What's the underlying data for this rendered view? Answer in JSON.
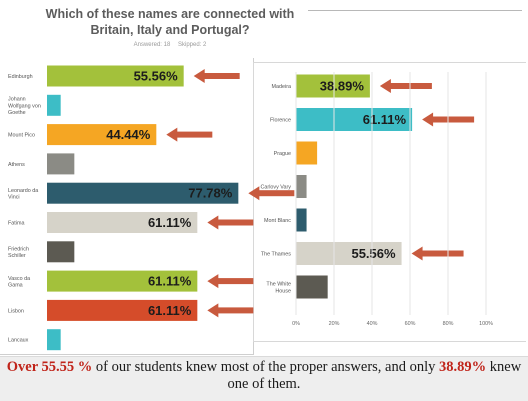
{
  "title_line1": "Which of these names are connected with",
  "title_line2": "Britain, Italy and Portugal?",
  "answered": "Answered: 18",
  "skipped": "Skipped: 2",
  "footer": {
    "part1": "Over  55.55 %",
    "part2": " of our students knew most of the proper answers, and only ",
    "part3": "38.89%",
    "part4": " knew one of them."
  },
  "colors": {
    "green": "#a3c13b",
    "teal": "#3dbdc6",
    "orange": "#f5a623",
    "gray": "#8b8b85",
    "darkteal": "#2d5c6d",
    "lightbeige": "#d6d3c9",
    "darkgray": "#5c5a52",
    "red": "#d54c2a",
    "arrow": "#c85a3e"
  },
  "chart_data": [
    {
      "type": "bar",
      "orientation": "horizontal",
      "categories": [
        "Edinburgh",
        "Johann Wolfgang von Goethe",
        "Mount Pico",
        "Athens",
        "Leonardo da Vinci",
        "Fatima",
        "Friedrich Schiller",
        "Vasco da Gama",
        "Lisbon",
        "Lancaux"
      ],
      "category_lines": [
        [
          "Edinburgh"
        ],
        [
          "Johann",
          "Wolfgang von",
          "Goethe"
        ],
        [
          "Mount Pico"
        ],
        [
          "Athens"
        ],
        [
          "Leonardo da",
          "Vinci"
        ],
        [
          "Fatima"
        ],
        [
          "Friedrich",
          "Schiller"
        ],
        [
          "Vasco da",
          "Gama"
        ],
        [
          "Lisbon"
        ],
        [
          "Lancaux"
        ]
      ],
      "values": [
        55.56,
        5.56,
        44.44,
        11.11,
        77.78,
        61.11,
        11.11,
        61.11,
        61.11,
        5.56
      ],
      "labels": [
        "55.56%",
        "",
        "44.44%",
        "",
        "77.78%",
        "61.11%",
        "",
        "61.11%",
        "61.11%",
        ""
      ],
      "bar_colors": [
        "green",
        "teal",
        "orange",
        "gray",
        "darkteal",
        "lightbeige",
        "darkgray",
        "green",
        "red",
        "teal"
      ],
      "arrows": [
        true,
        false,
        true,
        false,
        true,
        true,
        false,
        true,
        true,
        false
      ],
      "xlim": [
        0,
        100
      ]
    },
    {
      "type": "bar",
      "orientation": "horizontal",
      "categories": [
        "Madeira",
        "Florence",
        "Prague",
        "Carlovy Vary",
        "Mont Blanc",
        "The Thames",
        "The White House"
      ],
      "category_lines": [
        [
          "Madeira"
        ],
        [
          "Florence"
        ],
        [
          "Prague"
        ],
        [
          "Carlovy Vary"
        ],
        [
          "Mont Blanc"
        ],
        [
          "The Thames"
        ],
        [
          "The White",
          "House"
        ]
      ],
      "values": [
        38.89,
        61.11,
        11.11,
        5.56,
        5.56,
        55.56,
        16.67
      ],
      "labels": [
        "38.89%",
        "61.11%",
        "",
        "",
        "",
        "55.56%",
        ""
      ],
      "bar_colors": [
        "green",
        "teal",
        "orange",
        "gray",
        "darkteal",
        "lightbeige",
        "darkgray"
      ],
      "arrows": [
        true,
        true,
        false,
        false,
        false,
        true,
        false
      ],
      "xlim": [
        0,
        100
      ],
      "xticks": [
        "0%",
        "20%",
        "40%",
        "60%",
        "80%",
        "100%"
      ]
    }
  ]
}
